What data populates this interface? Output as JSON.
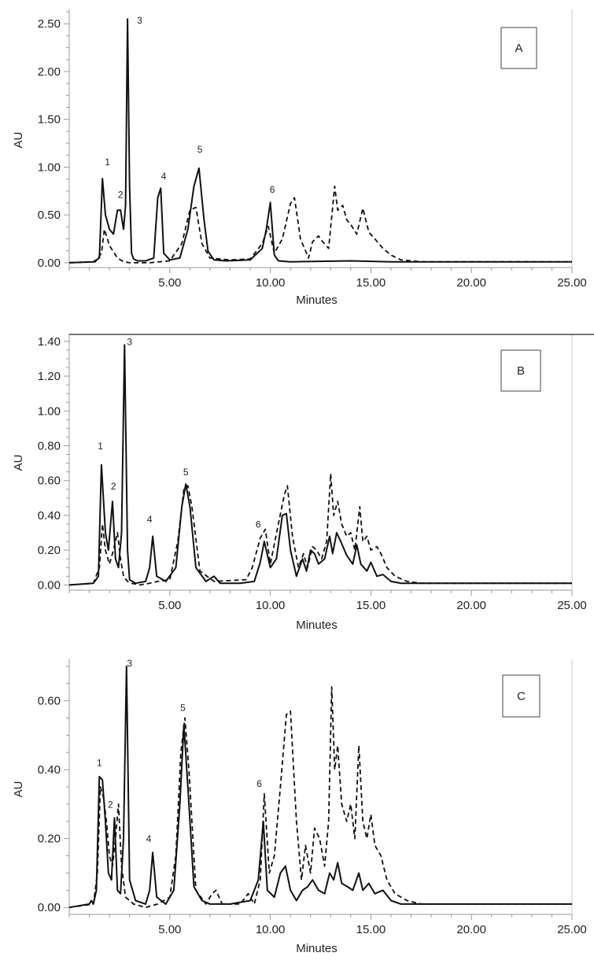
{
  "chart_data": [
    {
      "type": "line",
      "panel_label": "A",
      "xlabel": "Minutes",
      "ylabel": "AU",
      "xlim": [
        0,
        25
      ],
      "ylim": [
        -0.05,
        2.65
      ],
      "x_ticks": [
        5,
        10,
        15,
        20,
        25
      ],
      "x_tick_labels": [
        "5.00",
        "10.00",
        "15.00",
        "20.00",
        "25.00"
      ],
      "y_ticks": [
        0,
        0.5,
        1.0,
        1.5,
        2.0,
        2.5
      ],
      "y_tick_labels": [
        "0.00",
        "0.50",
        "1.00",
        "1.50",
        "2.00",
        "2.50"
      ],
      "peak_labels": [
        {
          "text": "1",
          "x": 1.9,
          "y": 1.02
        },
        {
          "text": "2",
          "x": 2.55,
          "y": 0.68
        },
        {
          "text": "3",
          "x": 3.5,
          "y": 2.5
        },
        {
          "text": "4",
          "x": 4.7,
          "y": 0.87
        },
        {
          "text": "5",
          "x": 6.5,
          "y": 1.15
        },
        {
          "text": "6",
          "x": 10.1,
          "y": 0.73
        }
      ],
      "series": [
        {
          "style": "solid",
          "x": [
            0,
            1.2,
            1.5,
            1.65,
            1.8,
            2.0,
            2.2,
            2.4,
            2.55,
            2.7,
            2.8,
            2.9,
            3.0,
            3.1,
            3.2,
            3.4,
            3.8,
            4.2,
            4.4,
            4.55,
            4.7,
            5.0,
            5.5,
            5.9,
            6.2,
            6.45,
            6.7,
            6.9,
            7.2,
            7.8,
            9.0,
            9.6,
            9.8,
            10.0,
            10.2,
            10.4,
            11.0,
            14.0,
            16.0,
            25.0
          ],
          "y": [
            0.0,
            0.01,
            0.05,
            0.88,
            0.5,
            0.35,
            0.3,
            0.55,
            0.55,
            0.35,
            0.6,
            2.55,
            0.8,
            0.1,
            0.04,
            0.02,
            0.02,
            0.05,
            0.68,
            0.78,
            0.1,
            0.03,
            0.05,
            0.35,
            0.8,
            0.99,
            0.45,
            0.12,
            0.03,
            0.02,
            0.03,
            0.15,
            0.35,
            0.63,
            0.08,
            0.02,
            0.01,
            0.02,
            0.01,
            0.01
          ]
        },
        {
          "style": "dashed",
          "x": [
            0,
            1.3,
            1.6,
            1.75,
            2.0,
            2.4,
            2.7,
            3.0,
            4.0,
            5.0,
            5.6,
            6.0,
            6.3,
            6.6,
            7.0,
            8.0,
            9.0,
            9.6,
            9.9,
            10.2,
            10.6,
            11.0,
            11.2,
            11.5,
            11.9,
            12.1,
            12.4,
            12.6,
            12.9,
            13.2,
            13.35,
            13.6,
            13.8,
            14.0,
            14.3,
            14.6,
            14.9,
            15.2,
            15.6,
            16.0,
            16.5,
            17.5,
            25.0
          ],
          "y": [
            0.0,
            0.01,
            0.1,
            0.35,
            0.18,
            0.05,
            0.01,
            0.0,
            0.0,
            0.02,
            0.2,
            0.55,
            0.58,
            0.2,
            0.05,
            0.03,
            0.04,
            0.2,
            0.38,
            0.1,
            0.25,
            0.62,
            0.68,
            0.25,
            0.05,
            0.22,
            0.28,
            0.22,
            0.15,
            0.8,
            0.55,
            0.6,
            0.45,
            0.4,
            0.3,
            0.57,
            0.32,
            0.25,
            0.15,
            0.08,
            0.03,
            0.01,
            0.01
          ]
        }
      ]
    },
    {
      "type": "line",
      "panel_label": "B",
      "xlabel": "Minutes",
      "ylabel": "AU",
      "xlim": [
        0,
        25
      ],
      "ylim": [
        -0.03,
        1.44
      ],
      "x_ticks": [
        5,
        10,
        15,
        20,
        25
      ],
      "x_tick_labels": [
        "5.00",
        "10.00",
        "15.00",
        "20.00",
        "25.00"
      ],
      "y_ticks": [
        0,
        0.2,
        0.4,
        0.6,
        0.8,
        1.0,
        1.2,
        1.4
      ],
      "y_tick_labels": [
        "0.00",
        "0.20",
        "0.40",
        "0.60",
        "0.80",
        "1.00",
        "1.20",
        "1.40"
      ],
      "peak_labels": [
        {
          "text": "1",
          "x": 1.55,
          "y": 0.78
        },
        {
          "text": "2",
          "x": 2.2,
          "y": 0.55
        },
        {
          "text": "3",
          "x": 3.0,
          "y": 1.38
        },
        {
          "text": "4",
          "x": 4.0,
          "y": 0.36
        },
        {
          "text": "5",
          "x": 5.8,
          "y": 0.63
        },
        {
          "text": "6",
          "x": 9.4,
          "y": 0.33
        }
      ],
      "series": [
        {
          "style": "solid",
          "x": [
            0,
            1.2,
            1.45,
            1.6,
            1.8,
            1.95,
            2.15,
            2.3,
            2.45,
            2.6,
            2.75,
            2.9,
            3.0,
            3.3,
            3.8,
            4.0,
            4.15,
            4.35,
            4.8,
            5.3,
            5.6,
            5.8,
            6.0,
            6.3,
            6.8,
            7.2,
            7.5,
            8.5,
            9.2,
            9.5,
            9.7,
            10.0,
            10.3,
            10.6,
            10.8,
            11.0,
            11.3,
            11.6,
            11.8,
            12.0,
            12.2,
            12.4,
            12.7,
            12.95,
            13.1,
            13.3,
            13.5,
            13.8,
            14.1,
            14.3,
            14.5,
            14.8,
            15.0,
            15.3,
            15.6,
            16.0,
            16.5,
            17.0,
            25.0
          ],
          "y": [
            0.0,
            0.01,
            0.05,
            0.69,
            0.3,
            0.2,
            0.48,
            0.15,
            0.1,
            0.3,
            1.38,
            0.2,
            0.03,
            0.01,
            0.02,
            0.1,
            0.28,
            0.05,
            0.02,
            0.1,
            0.45,
            0.58,
            0.45,
            0.1,
            0.02,
            0.05,
            0.01,
            0.01,
            0.02,
            0.13,
            0.25,
            0.1,
            0.15,
            0.4,
            0.41,
            0.2,
            0.05,
            0.15,
            0.08,
            0.2,
            0.18,
            0.12,
            0.15,
            0.28,
            0.18,
            0.3,
            0.25,
            0.17,
            0.12,
            0.23,
            0.12,
            0.08,
            0.13,
            0.05,
            0.06,
            0.02,
            0.01,
            0.01,
            0.01
          ]
        },
        {
          "style": "dashed",
          "x": [
            0,
            1.2,
            1.5,
            1.65,
            1.8,
            2.0,
            2.2,
            2.4,
            2.55,
            2.7,
            2.9,
            3.1,
            3.5,
            4.0,
            4.4,
            5.0,
            5.4,
            5.7,
            5.9,
            6.1,
            6.5,
            7.2,
            8.8,
            9.1,
            9.5,
            9.75,
            10.0,
            10.4,
            10.7,
            10.85,
            11.1,
            11.4,
            11.65,
            11.85,
            12.1,
            12.3,
            12.55,
            12.8,
            13.0,
            13.15,
            13.35,
            13.55,
            13.8,
            14.0,
            14.2,
            14.45,
            14.6,
            14.8,
            15.0,
            15.3,
            15.5,
            15.8,
            16.2,
            16.8,
            17.5,
            25.0
          ],
          "y": [
            0.0,
            0.01,
            0.1,
            0.35,
            0.2,
            0.12,
            0.2,
            0.3,
            0.15,
            0.05,
            0.02,
            0.01,
            0.0,
            0.01,
            0.02,
            0.03,
            0.25,
            0.55,
            0.57,
            0.45,
            0.08,
            0.02,
            0.03,
            0.1,
            0.27,
            0.32,
            0.12,
            0.35,
            0.52,
            0.57,
            0.28,
            0.1,
            0.18,
            0.1,
            0.22,
            0.2,
            0.15,
            0.25,
            0.64,
            0.4,
            0.48,
            0.35,
            0.28,
            0.3,
            0.2,
            0.45,
            0.25,
            0.28,
            0.2,
            0.22,
            0.18,
            0.1,
            0.05,
            0.02,
            0.01,
            0.01
          ]
        }
      ]
    },
    {
      "type": "line",
      "panel_label": "C",
      "xlabel": "Minutes",
      "ylabel": "AU",
      "xlim": [
        0,
        25
      ],
      "ylim": [
        -0.02,
        0.72
      ],
      "x_ticks": [
        5,
        10,
        15,
        20,
        25
      ],
      "x_tick_labels": [
        "5.00",
        "10.00",
        "15.00",
        "20.00",
        "25.00"
      ],
      "y_ticks": [
        0,
        0.2,
        0.4,
        0.6
      ],
      "y_tick_labels": [
        "0.00",
        "0.20",
        "0.40",
        "0.60"
      ],
      "peak_labels": [
        {
          "text": "1",
          "x": 1.5,
          "y": 0.41
        },
        {
          "text": "2",
          "x": 2.05,
          "y": 0.29
        },
        {
          "text": "3",
          "x": 3.0,
          "y": 0.7
        },
        {
          "text": "4",
          "x": 3.95,
          "y": 0.19
        },
        {
          "text": "5",
          "x": 5.65,
          "y": 0.57
        },
        {
          "text": "6",
          "x": 9.45,
          "y": 0.35
        }
      ],
      "series": [
        {
          "style": "solid",
          "x": [
            0,
            1.0,
            1.1,
            1.2,
            1.35,
            1.5,
            1.65,
            1.8,
            1.95,
            2.1,
            2.25,
            2.4,
            2.55,
            2.7,
            2.85,
            3.0,
            3.3,
            3.8,
            4.0,
            4.15,
            4.35,
            4.8,
            5.2,
            5.5,
            5.7,
            5.9,
            6.2,
            6.6,
            7.0,
            8.0,
            9.0,
            9.4,
            9.65,
            9.85,
            10.2,
            10.5,
            10.75,
            11.0,
            11.3,
            11.6,
            11.85,
            12.1,
            12.4,
            12.7,
            12.95,
            13.15,
            13.35,
            13.55,
            13.85,
            14.1,
            14.4,
            14.6,
            14.9,
            15.2,
            15.6,
            16.0,
            16.5,
            17.0,
            25.0
          ],
          "y": [
            0.0,
            0.01,
            0.02,
            0.01,
            0.05,
            0.38,
            0.37,
            0.25,
            0.1,
            0.08,
            0.26,
            0.05,
            0.04,
            0.2,
            0.7,
            0.08,
            0.02,
            0.01,
            0.05,
            0.16,
            0.03,
            0.01,
            0.05,
            0.3,
            0.53,
            0.35,
            0.06,
            0.02,
            0.01,
            0.01,
            0.02,
            0.08,
            0.25,
            0.05,
            0.03,
            0.1,
            0.12,
            0.05,
            0.02,
            0.05,
            0.06,
            0.08,
            0.05,
            0.04,
            0.1,
            0.08,
            0.13,
            0.07,
            0.06,
            0.05,
            0.1,
            0.05,
            0.07,
            0.04,
            0.05,
            0.02,
            0.01,
            0.01,
            0.01
          ]
        },
        {
          "style": "dashed",
          "x": [
            0,
            1.2,
            1.4,
            1.55,
            1.7,
            1.85,
            2.0,
            2.15,
            2.3,
            2.45,
            2.6,
            2.8,
            3.2,
            3.8,
            4.4,
            5.0,
            5.3,
            5.55,
            5.75,
            5.95,
            6.3,
            6.8,
            7.1,
            7.3,
            7.6,
            8.5,
            8.9,
            9.2,
            9.5,
            9.7,
            9.95,
            10.2,
            10.5,
            10.8,
            11.0,
            11.3,
            11.55,
            11.75,
            12.0,
            12.2,
            12.45,
            12.7,
            12.9,
            13.05,
            13.2,
            13.35,
            13.55,
            13.8,
            14.0,
            14.2,
            14.4,
            14.6,
            14.8,
            15.0,
            15.2,
            15.5,
            15.8,
            16.2,
            16.8,
            17.5,
            25.0
          ],
          "y": [
            0.0,
            0.01,
            0.1,
            0.35,
            0.32,
            0.25,
            0.15,
            0.12,
            0.2,
            0.3,
            0.12,
            0.03,
            0.01,
            0.0,
            0.01,
            0.03,
            0.15,
            0.45,
            0.55,
            0.4,
            0.05,
            0.01,
            0.04,
            0.05,
            0.01,
            0.01,
            0.04,
            0.01,
            0.08,
            0.33,
            0.1,
            0.15,
            0.35,
            0.56,
            0.57,
            0.25,
            0.08,
            0.18,
            0.1,
            0.23,
            0.2,
            0.12,
            0.25,
            0.64,
            0.4,
            0.47,
            0.3,
            0.25,
            0.3,
            0.2,
            0.47,
            0.25,
            0.2,
            0.27,
            0.18,
            0.15,
            0.08,
            0.04,
            0.02,
            0.01,
            0.01
          ]
        }
      ]
    }
  ]
}
